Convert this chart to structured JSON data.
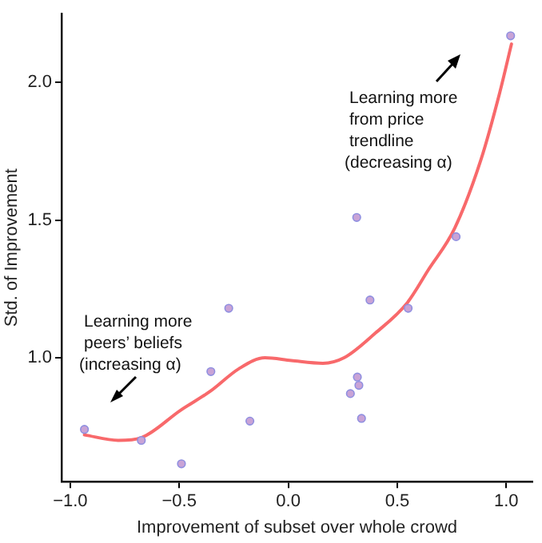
{
  "chart_data": {
    "type": "scatter",
    "xlabel": "Improvement of subset over whole crowd",
    "ylabel": "Std. of Improvement",
    "series": [
      {
        "type": "scatter",
        "color": "#c9a3d6",
        "marker": "circle",
        "x": [
          -0.935,
          -0.674,
          -0.49,
          -0.355,
          -0.273,
          -0.176,
          0.285,
          0.317,
          0.324,
          0.336,
          0.375,
          0.55,
          0.314,
          0.77,
          1.02
        ],
        "values": [
          0.74,
          0.7,
          0.615,
          0.95,
          1.18,
          0.77,
          0.87,
          0.93,
          0.9,
          0.78,
          1.21,
          1.18,
          1.51,
          1.44,
          2.17
        ]
      },
      {
        "type": "line",
        "color": "#f8696b",
        "marker": "none",
        "x": [
          -0.935,
          -0.78,
          -0.674,
          -0.493,
          -0.355,
          -0.227,
          -0.107,
          0.014,
          0.159,
          0.256,
          0.4,
          0.546,
          0.643,
          0.763,
          0.884,
          0.969,
          1.024
        ],
        "values": [
          0.72,
          0.7,
          0.71,
          0.81,
          0.88,
          0.96,
          1.0,
          0.99,
          0.98,
          1.0,
          1.09,
          1.2,
          1.32,
          1.47,
          1.72,
          1.96,
          2.14
        ]
      }
    ],
    "xlim": [
      -1.04,
      1.12
    ],
    "ylim": [
      0.55,
      2.25
    ],
    "xticks": [
      {
        "value": -1,
        "label": "−1.0"
      },
      {
        "value": -0.5,
        "label": "−0.5"
      },
      {
        "value": 0,
        "label": "0.0"
      },
      {
        "value": 0.5,
        "label": "0.5"
      },
      {
        "value": 1,
        "label": "1.0"
      }
    ],
    "yticks": [
      {
        "value": 1,
        "label": "1.0"
      },
      {
        "value": 1.5,
        "label": "1.5"
      },
      {
        "value": 2,
        "label": "2.0"
      }
    ],
    "grid": false,
    "legend": false,
    "annotations": [
      "Learning more\npeers’ beliefs\n(increasing α)",
      "Learning more\nfrom price\ntrendline\n(decreasing α)"
    ]
  }
}
